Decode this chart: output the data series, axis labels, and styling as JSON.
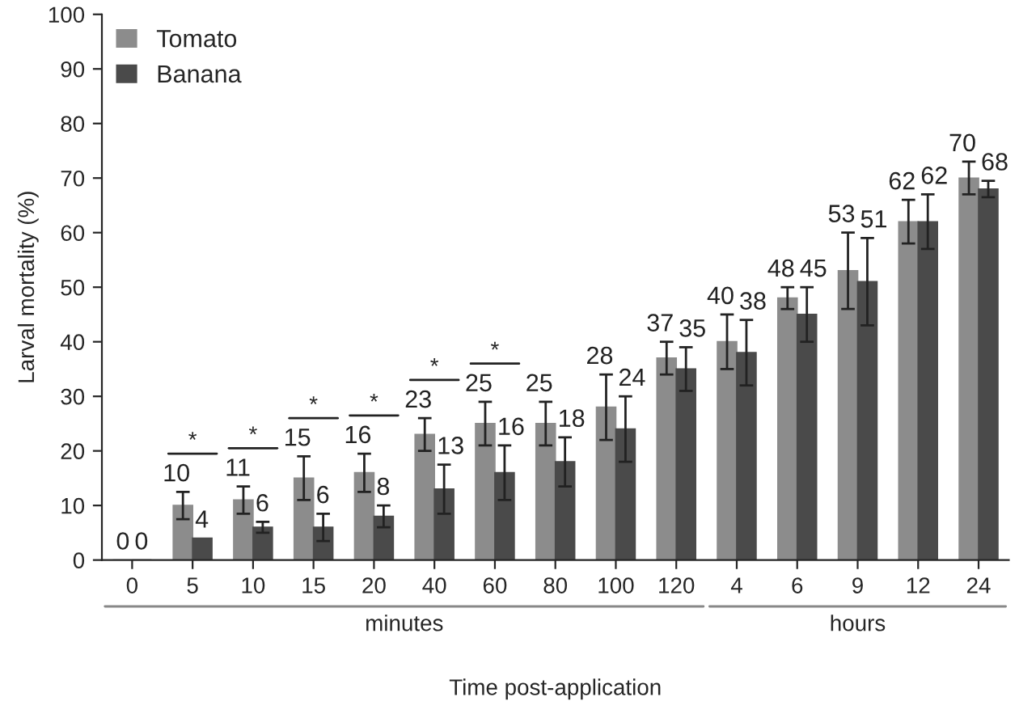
{
  "chart_data": {
    "type": "bar",
    "xlabel": "Time post-application",
    "ylabel": "Larval mortality (%)",
    "categories": [
      "0",
      "5",
      "10",
      "15",
      "20",
      "40",
      "60",
      "80",
      "100",
      "120",
      "4",
      "6",
      "9",
      "12",
      "24"
    ],
    "series": [
      {
        "name": "Tomato",
        "color": "#8c8c8c",
        "values": [
          0,
          10,
          11,
          15,
          16,
          23,
          25,
          25,
          28,
          37,
          40,
          48,
          53,
          62,
          70
        ],
        "errors": [
          null,
          2.5,
          2.5,
          4,
          3.5,
          3,
          4,
          4,
          6,
          3,
          5,
          2,
          7,
          4,
          3
        ]
      },
      {
        "name": "Banana",
        "color": "#4a4a4a",
        "values": [
          0,
          4,
          6,
          6,
          8,
          13,
          16,
          18,
          24,
          35,
          38,
          45,
          51,
          62,
          68
        ],
        "errors": [
          null,
          null,
          1,
          2.5,
          2,
          4.5,
          5,
          4.5,
          6,
          4,
          6,
          5,
          8,
          5,
          1.5
        ]
      }
    ],
    "data_labels": true,
    "ylim": [
      0,
      100
    ],
    "yticks": [
      0,
      10,
      20,
      30,
      40,
      50,
      60,
      70,
      80,
      90,
      100
    ],
    "grid": false,
    "legend": "top left",
    "annotations": [
      "*",
      "*",
      "*",
      "*",
      "*",
      "*",
      "minutes",
      "hours"
    ]
  }
}
